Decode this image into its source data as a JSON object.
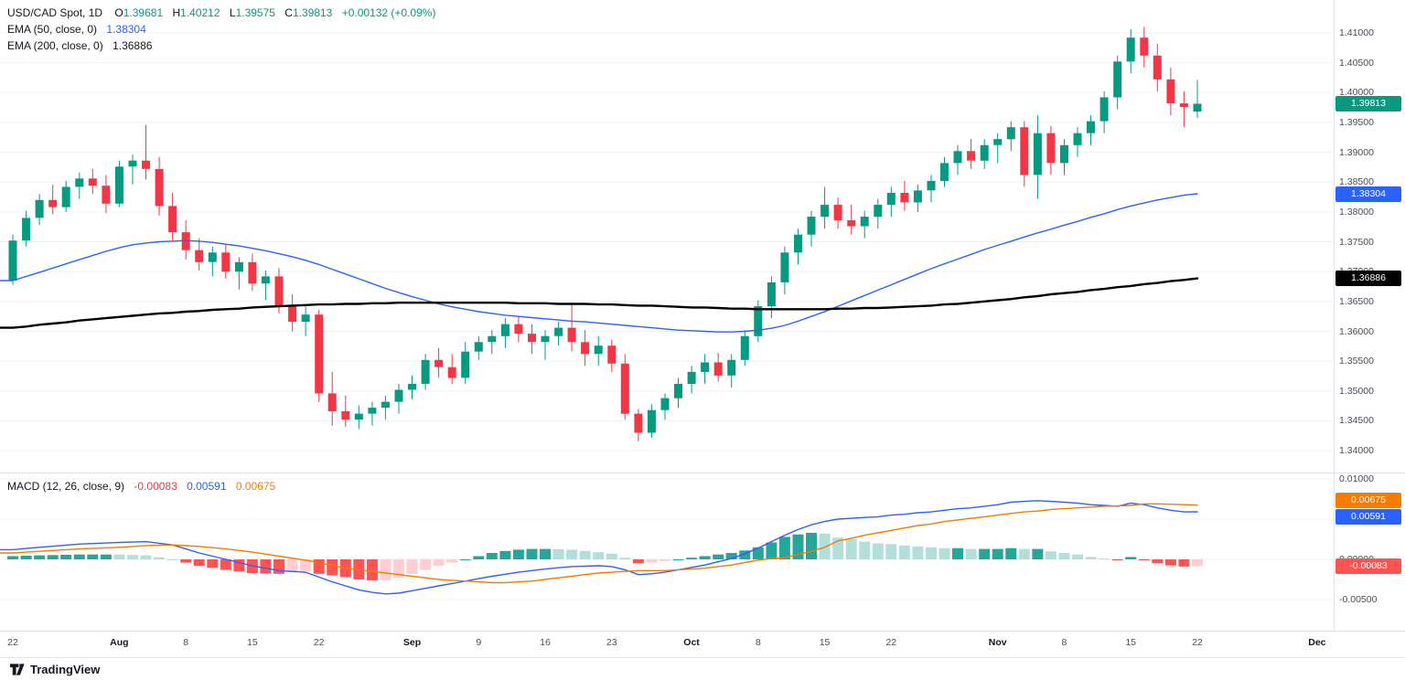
{
  "header": {
    "title": "USD/CAD Spot, 1D",
    "o_label": "O",
    "o": "1.39681",
    "h_label": "H",
    "h": "1.40212",
    "l_label": "L",
    "l": "1.39575",
    "c_label": "C",
    "c": "1.39813",
    "change": "+0.00132 (+0.09%)",
    "ema50_label": "EMA (50, close, 0)",
    "ema50_value": "1.38304",
    "ema200_label": "EMA (200, close, 0)",
    "ema200_value": "1.36886"
  },
  "macd_header": {
    "label": "MACD (12, 26, close, 9)",
    "hist_value": "-0.00083",
    "macd_value": "0.00591",
    "signal_value": "0.00675"
  },
  "footer": {
    "brand": "TradingView"
  },
  "colors": {
    "up": "#089981",
    "down": "#F23645",
    "ema50": "#2962FF",
    "ema200": "#000000",
    "macd_line": "#2962FF",
    "signal_line": "#F57C00",
    "hist_grow_above": "#26A69A",
    "hist_fall_above": "#B2DFDB",
    "hist_grow_below": "#FFCDD2",
    "hist_fall_below": "#FF5252",
    "grid": "#EFF2F5",
    "separator": "#E0E3EB",
    "text_dark": "#131722",
    "text_axis": "#4A4E59"
  },
  "chart_data": {
    "type": "candlestick",
    "title": "USD/CAD Spot",
    "timeframe": "1D",
    "legend_last": {
      "open": 1.39681,
      "high": 1.40212,
      "low": 1.39575,
      "close": 1.39813,
      "change": 0.00132,
      "change_pct": 0.09
    },
    "price_range": [
      1.34,
      1.41
    ],
    "macd_range": [
      -0.005,
      0.01
    ],
    "grid": true,
    "ohlc": [
      [
        "Jul 22",
        1.3685,
        1.3762,
        1.3678,
        1.3752
      ],
      [
        "Jul 23",
        1.3752,
        1.3802,
        1.3742,
        1.379
      ],
      [
        "Jul 24",
        1.379,
        1.383,
        1.3778,
        1.382
      ],
      [
        "Jul 25",
        1.382,
        1.3846,
        1.3796,
        1.3808
      ],
      [
        "Jul 26",
        1.3808,
        1.3852,
        1.38,
        1.3842
      ],
      [
        "Jul 29",
        1.3842,
        1.3866,
        1.3822,
        1.3856
      ],
      [
        "Jul 30",
        1.3856,
        1.3872,
        1.383,
        1.3844
      ],
      [
        "Jul 31",
        1.3844,
        1.3862,
        1.3798,
        1.3814
      ],
      [
        "Aug 1",
        1.3814,
        1.3886,
        1.3808,
        1.3876
      ],
      [
        "Aug 2",
        1.3876,
        1.3896,
        1.3846,
        1.3886
      ],
      [
        "Aug 5",
        1.3886,
        1.3946,
        1.3854,
        1.3872
      ],
      [
        "Aug 6",
        1.3872,
        1.3892,
        1.3794,
        1.381
      ],
      [
        "Aug 7",
        1.381,
        1.3832,
        1.3752,
        1.3766
      ],
      [
        "Aug 8",
        1.3766,
        1.3786,
        1.372,
        1.3736
      ],
      [
        "Aug 9",
        1.3736,
        1.3756,
        1.3702,
        1.3716
      ],
      [
        "Aug 12",
        1.3716,
        1.3742,
        1.3692,
        1.3732
      ],
      [
        "Aug 13",
        1.3732,
        1.3746,
        1.3688,
        1.37
      ],
      [
        "Aug 14",
        1.37,
        1.3724,
        1.367,
        1.3716
      ],
      [
        "Aug 15",
        1.3716,
        1.373,
        1.3668,
        1.368
      ],
      [
        "Aug 16",
        1.368,
        1.3702,
        1.3652,
        1.3692
      ],
      [
        "Aug 19",
        1.3692,
        1.3706,
        1.363,
        1.3642
      ],
      [
        "Aug 20",
        1.3642,
        1.3662,
        1.36,
        1.3616
      ],
      [
        "Aug 21",
        1.3616,
        1.3642,
        1.3592,
        1.3628
      ],
      [
        "Aug 22",
        1.3628,
        1.3636,
        1.3482,
        1.3496
      ],
      [
        "Aug 23",
        1.3496,
        1.3532,
        1.3442,
        1.3466
      ],
      [
        "Aug 26",
        1.3466,
        1.3492,
        1.344,
        1.3452
      ],
      [
        "Aug 27",
        1.3452,
        1.3476,
        1.3436,
        1.3462
      ],
      [
        "Aug 28",
        1.3462,
        1.3482,
        1.3442,
        1.3472
      ],
      [
        "Aug 29",
        1.3472,
        1.3492,
        1.3452,
        1.3482
      ],
      [
        "Aug 30",
        1.3482,
        1.3512,
        1.3462,
        1.3502
      ],
      [
        "Sep 2",
        1.3502,
        1.3526,
        1.3486,
        1.3512
      ],
      [
        "Sep 3",
        1.3512,
        1.3562,
        1.3502,
        1.3552
      ],
      [
        "Sep 4",
        1.3552,
        1.3572,
        1.3522,
        1.354
      ],
      [
        "Sep 5",
        1.354,
        1.3562,
        1.3512,
        1.3522
      ],
      [
        "Sep 6",
        1.3522,
        1.3582,
        1.3512,
        1.3566
      ],
      [
        "Sep 9",
        1.3566,
        1.3592,
        1.3552,
        1.3582
      ],
      [
        "Sep 10",
        1.3582,
        1.3602,
        1.3562,
        1.3592
      ],
      [
        "Sep 11",
        1.3592,
        1.3622,
        1.3572,
        1.3612
      ],
      [
        "Sep 12",
        1.3612,
        1.3626,
        1.3582,
        1.3596
      ],
      [
        "Sep 13",
        1.3596,
        1.3612,
        1.3562,
        1.3582
      ],
      [
        "Sep 16",
        1.3582,
        1.3602,
        1.3552,
        1.3592
      ],
      [
        "Sep 17",
        1.3592,
        1.3616,
        1.3576,
        1.3606
      ],
      [
        "Sep 18",
        1.3606,
        1.3648,
        1.3566,
        1.3582
      ],
      [
        "Sep 19",
        1.3582,
        1.3602,
        1.3542,
        1.3562
      ],
      [
        "Sep 20",
        1.3562,
        1.3592,
        1.3542,
        1.3576
      ],
      [
        "Sep 23",
        1.3576,
        1.3586,
        1.3532,
        1.3546
      ],
      [
        "Sep 24",
        1.3546,
        1.3562,
        1.3452,
        1.3462
      ],
      [
        "Sep 25",
        1.3462,
        1.347,
        1.3416,
        1.343
      ],
      [
        "Sep 26",
        1.343,
        1.3478,
        1.3422,
        1.3468
      ],
      [
        "Sep 27",
        1.3468,
        1.3496,
        1.3452,
        1.3488
      ],
      [
        "Sep 30",
        1.3488,
        1.3522,
        1.3472,
        1.3512
      ],
      [
        "Oct 1",
        1.3512,
        1.3542,
        1.3496,
        1.3532
      ],
      [
        "Oct 2",
        1.3532,
        1.3562,
        1.3512,
        1.3548
      ],
      [
        "Oct 3",
        1.3548,
        1.3564,
        1.3516,
        1.3526
      ],
      [
        "Oct 4",
        1.3526,
        1.3562,
        1.3506,
        1.3552
      ],
      [
        "Oct 7",
        1.3552,
        1.3602,
        1.3542,
        1.3592
      ],
      [
        "Oct 8",
        1.3592,
        1.3652,
        1.3582,
        1.3642
      ],
      [
        "Oct 9",
        1.3642,
        1.3692,
        1.3622,
        1.3682
      ],
      [
        "Oct 10",
        1.3682,
        1.3742,
        1.3662,
        1.3732
      ],
      [
        "Oct 11",
        1.3732,
        1.3772,
        1.3712,
        1.3762
      ],
      [
        "Oct 14",
        1.3762,
        1.3802,
        1.3742,
        1.3792
      ],
      [
        "Oct 15",
        1.3792,
        1.3842,
        1.3772,
        1.3812
      ],
      [
        "Oct 16",
        1.3812,
        1.3824,
        1.3772,
        1.3786
      ],
      [
        "Oct 17",
        1.3786,
        1.3812,
        1.3762,
        1.3776
      ],
      [
        "Oct 18",
        1.3776,
        1.3802,
        1.3756,
        1.3792
      ],
      [
        "Oct 21",
        1.3792,
        1.3822,
        1.3772,
        1.3812
      ],
      [
        "Oct 22",
        1.3812,
        1.3842,
        1.3792,
        1.3832
      ],
      [
        "Oct 23",
        1.3832,
        1.3852,
        1.3802,
        1.3816
      ],
      [
        "Oct 24",
        1.3816,
        1.3846,
        1.38,
        1.3836
      ],
      [
        "Oct 25",
        1.3836,
        1.3862,
        1.3816,
        1.3852
      ],
      [
        "Oct 28",
        1.3852,
        1.3892,
        1.3842,
        1.3882
      ],
      [
        "Oct 29",
        1.3882,
        1.3912,
        1.3862,
        1.3902
      ],
      [
        "Oct 30",
        1.3902,
        1.3922,
        1.3872,
        1.3886
      ],
      [
        "Oct 31",
        1.3886,
        1.3922,
        1.3872,
        1.3912
      ],
      [
        "Nov 1",
        1.3912,
        1.3932,
        1.3882,
        1.3922
      ],
      [
        "Nov 4",
        1.3922,
        1.3952,
        1.3902,
        1.3942
      ],
      [
        "Nov 5",
        1.3942,
        1.3952,
        1.3842,
        1.3862
      ],
      [
        "Nov 6",
        1.3862,
        1.3962,
        1.3822,
        1.3932
      ],
      [
        "Nov 7",
        1.3932,
        1.3944,
        1.3862,
        1.3882
      ],
      [
        "Nov 8",
        1.3882,
        1.3922,
        1.3862,
        1.3912
      ],
      [
        "Nov 11",
        1.3912,
        1.3942,
        1.3892,
        1.3932
      ],
      [
        "Nov 12",
        1.3932,
        1.3962,
        1.3912,
        1.3952
      ],
      [
        "Nov 13",
        1.3952,
        1.4002,
        1.3932,
        1.3992
      ],
      [
        "Nov 14",
        1.3992,
        1.4062,
        1.3972,
        1.4052
      ],
      [
        "Nov 15",
        1.4052,
        1.4106,
        1.4032,
        1.4092
      ],
      [
        "Nov 18",
        1.4092,
        1.411,
        1.4042,
        1.4062
      ],
      [
        "Nov 19",
        1.4062,
        1.4082,
        1.4002,
        1.4022
      ],
      [
        "Nov 20",
        1.4022,
        1.4042,
        1.3962,
        1.3982
      ],
      [
        "Nov 21",
        1.3982,
        1.4002,
        1.3942,
        1.3976
      ],
      [
        "Nov 22",
        1.39681,
        1.40212,
        1.39575,
        1.39813
      ]
    ],
    "ema50": [
      1.3685,
      1.3692,
      1.3699,
      1.3706,
      1.3713,
      1.372,
      1.3727,
      1.3734,
      1.374,
      1.3745,
      1.3748,
      1.375,
      1.3751,
      1.3752,
      1.3751,
      1.3749,
      1.3746,
      1.3743,
      1.3739,
      1.3735,
      1.373,
      1.3725,
      1.3719,
      1.3712,
      1.3704,
      1.3696,
      1.3688,
      1.368,
      1.3672,
      1.3665,
      1.3658,
      1.3652,
      1.3646,
      1.3641,
      1.3637,
      1.3633,
      1.363,
      1.3627,
      1.3625,
      1.3623,
      1.3621,
      1.3619,
      1.3617,
      1.3616,
      1.3614,
      1.3612,
      1.361,
      1.3608,
      1.3606,
      1.3604,
      1.3602,
      1.3601,
      1.36,
      1.3599,
      1.3599,
      1.36,
      1.3602,
      1.3605,
      1.361,
      1.3617,
      1.3625,
      1.3633,
      1.3642,
      1.3651,
      1.366,
      1.3669,
      1.3678,
      1.3687,
      1.3696,
      1.3705,
      1.3713,
      1.3721,
      1.3729,
      1.3737,
      1.3744,
      1.3751,
      1.3758,
      1.3765,
      1.3771,
      1.3778,
      1.3784,
      1.3791,
      1.3797,
      1.3804,
      1.381,
      1.3815,
      1.382,
      1.3824,
      1.3828,
      1.38304
    ],
    "ema200": [
      1.3606,
      1.3608,
      1.3611,
      1.3613,
      1.3615,
      1.3618,
      1.362,
      1.3622,
      1.3624,
      1.3626,
      1.3628,
      1.363,
      1.3631,
      1.3633,
      1.3634,
      1.3636,
      1.3637,
      1.3638,
      1.364,
      1.3641,
      1.3642,
      1.3643,
      1.3644,
      1.3645,
      1.3645,
      1.3646,
      1.3646,
      1.3647,
      1.3647,
      1.3648,
      1.3648,
      1.3648,
      1.3648,
      1.3648,
      1.3648,
      1.3648,
      1.3648,
      1.3648,
      1.3647,
      1.3647,
      1.3647,
      1.3646,
      1.3646,
      1.3646,
      1.3645,
      1.3645,
      1.3644,
      1.3643,
      1.3643,
      1.3642,
      1.3641,
      1.364,
      1.364,
      1.3639,
      1.3638,
      1.3638,
      1.3637,
      1.3637,
      1.3637,
      1.3637,
      1.3637,
      1.3637,
      1.3638,
      1.3638,
      1.3639,
      1.3639,
      1.364,
      1.3641,
      1.3642,
      1.3643,
      1.3645,
      1.3646,
      1.3648,
      1.365,
      1.3652,
      1.3654,
      1.3657,
      1.3659,
      1.3662,
      1.3664,
      1.3666,
      1.3669,
      1.3671,
      1.3674,
      1.3676,
      1.3679,
      1.3681,
      1.3684,
      1.3686,
      1.36886
    ],
    "macd": {
      "macd": [
        0.0012,
        0.00135,
        0.0015,
        0.00163,
        0.00177,
        0.0019,
        0.00197,
        0.00203,
        0.0021,
        0.00215,
        0.0022,
        0.002,
        0.0018,
        0.0013,
        0.0008,
        0.0004,
        0.0,
        -0.0004,
        -0.0008,
        -0.0011,
        -0.0014,
        -0.0015,
        -0.0016,
        -0.0022,
        -0.0028,
        -0.0033,
        -0.0038,
        -0.0041,
        -0.0043,
        -0.0042,
        -0.0039,
        -0.0036,
        -0.0033,
        -0.003,
        -0.0027,
        -0.0024,
        -0.0021,
        -0.00185,
        -0.0016,
        -0.0014,
        -0.0012,
        -0.00105,
        -0.0009,
        -0.00085,
        -0.0008,
        -0.0009,
        -0.0013,
        -0.0019,
        -0.0018,
        -0.0016,
        -0.0013,
        -0.001,
        -0.0007,
        -0.0003,
        0.0001,
        0.0007,
        0.0014,
        0.0022,
        0.003,
        0.0037,
        0.0043,
        0.0047,
        0.005,
        0.0051,
        0.0052,
        0.0053,
        0.0055,
        0.0056,
        0.0058,
        0.0059,
        0.0061,
        0.0063,
        0.0064,
        0.0066,
        0.0068,
        0.0071,
        0.0072,
        0.0073,
        0.0072,
        0.0071,
        0.007,
        0.0068,
        0.0067,
        0.0066,
        0.007,
        0.0068,
        0.0064,
        0.0061,
        0.0059,
        0.00591
      ],
      "signal": [
        0.0008,
        0.0009,
        0.001,
        0.0011,
        0.0012,
        0.0013,
        0.00137,
        0.00143,
        0.0015,
        0.0016,
        0.0017,
        0.00175,
        0.0018,
        0.0017,
        0.0016,
        0.00145,
        0.0013,
        0.0011,
        0.0009,
        0.00065,
        0.0004,
        0.00015,
        -0.0001,
        -0.0004,
        -0.0008,
        -0.0011,
        -0.0013,
        -0.0015,
        -0.0017,
        -0.0019,
        -0.0021,
        -0.0023,
        -0.0025,
        -0.0026,
        -0.0027,
        -0.0028,
        -0.0029,
        -0.0029,
        -0.0028,
        -0.0027,
        -0.0025,
        -0.0023,
        -0.0021,
        -0.0019,
        -0.0017,
        -0.0016,
        -0.0015,
        -0.0014,
        -0.0014,
        -0.0014,
        -0.0013,
        -0.0012,
        -0.0011,
        -0.0009,
        -0.0007,
        -0.0004,
        -0.0001,
        0.0001,
        0.0002,
        0.0006,
        0.001,
        0.0015,
        0.0023,
        0.0026,
        0.003,
        0.0033,
        0.0036,
        0.0039,
        0.0042,
        0.0044,
        0.0047,
        0.0049,
        0.0051,
        0.0053,
        0.0055,
        0.0057,
        0.0059,
        0.006,
        0.0062,
        0.0063,
        0.0064,
        0.0065,
        0.0066,
        0.00665,
        0.0067,
        0.0069,
        0.0069,
        0.00685,
        0.0068,
        0.00675
      ],
      "hist_last": -0.00083
    },
    "price_ticks": [
      {
        "label": "1.41000",
        "v": 1.41
      },
      {
        "label": "1.40500",
        "v": 1.405
      },
      {
        "label": "1.40000",
        "v": 1.4
      },
      {
        "label": "1.39500",
        "v": 1.395
      },
      {
        "label": "1.39000",
        "v": 1.39
      },
      {
        "label": "1.38500",
        "v": 1.385
      },
      {
        "label": "1.38000",
        "v": 1.38
      },
      {
        "label": "1.37500",
        "v": 1.375
      },
      {
        "label": "1.37000",
        "v": 1.37
      },
      {
        "label": "1.36500",
        "v": 1.365
      },
      {
        "label": "1.36000",
        "v": 1.36
      },
      {
        "label": "1.35500",
        "v": 1.355
      },
      {
        "label": "1.35000",
        "v": 1.35
      },
      {
        "label": "1.34500",
        "v": 1.345
      },
      {
        "label": "1.34000",
        "v": 1.34
      }
    ],
    "macd_ticks": [
      {
        "label": "0.01000",
        "v": 0.01
      },
      {
        "label": "0.00500",
        "v": 0.005
      },
      {
        "label": "0.00000",
        "v": 0.0
      },
      {
        "label": "-0.00500",
        "v": -0.005
      }
    ],
    "time_ticks": [
      {
        "label": "22",
        "i": 0,
        "m": false
      },
      {
        "label": "Aug",
        "i": 8,
        "m": true
      },
      {
        "label": "8",
        "i": 13,
        "m": false
      },
      {
        "label": "15",
        "i": 18,
        "m": false
      },
      {
        "label": "22",
        "i": 23,
        "m": false
      },
      {
        "label": "Sep",
        "i": 30,
        "m": true
      },
      {
        "label": "9",
        "i": 35,
        "m": false
      },
      {
        "label": "16",
        "i": 40,
        "m": false
      },
      {
        "label": "23",
        "i": 45,
        "m": false
      },
      {
        "label": "Oct",
        "i": 51,
        "m": true
      },
      {
        "label": "8",
        "i": 56,
        "m": false
      },
      {
        "label": "15",
        "i": 61,
        "m": false
      },
      {
        "label": "22",
        "i": 66,
        "m": false
      },
      {
        "label": "Nov",
        "i": 74,
        "m": true
      },
      {
        "label": "8",
        "i": 79,
        "m": false
      },
      {
        "label": "15",
        "i": 84,
        "m": false
      },
      {
        "label": "22",
        "i": 89,
        "m": false
      },
      {
        "label": "Dec",
        "i": 98,
        "m": true
      }
    ],
    "price_badges": [
      {
        "label": "1.39813",
        "v": 1.39813,
        "bg": "#089981"
      },
      {
        "label": "1.38304",
        "v": 1.38304,
        "bg": "#2962FF"
      },
      {
        "label": "1.36886",
        "v": 1.36886,
        "bg": "#000000"
      }
    ],
    "macd_badges": [
      {
        "label": "0.00675",
        "v": 0.00675,
        "bg": "#F57C00"
      },
      {
        "label": "0.00591",
        "v": 0.00591,
        "bg": "#2962FF"
      },
      {
        "label": "-0.00083",
        "v": -0.00083,
        "bg": "#FF5252"
      }
    ]
  }
}
